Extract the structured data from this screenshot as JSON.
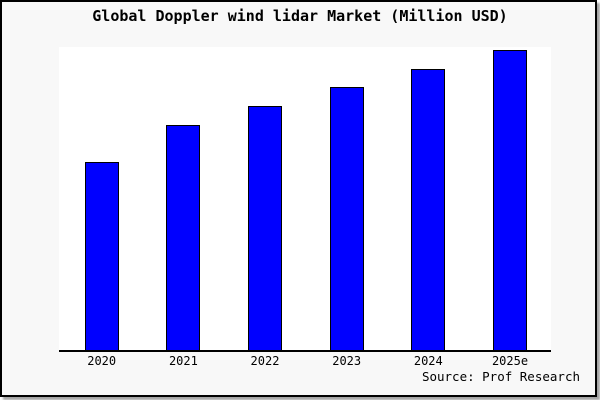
{
  "title": "Global Doppler wind lidar Market (Million USD)",
  "source": "Source: Prof Research",
  "colors": {
    "bar_fill": "#0000ff",
    "bar_border": "#000000",
    "figure_bg": "#f8f8f8",
    "plot_bg": "#ffffff",
    "axis": "#000000",
    "frame_border": "#000000"
  },
  "chart_data": {
    "type": "bar",
    "title": "Global Doppler wind lidar Market (Million USD)",
    "categories": [
      "2020",
      "2021",
      "2022",
      "2023",
      "2024",
      "2025e"
    ],
    "values": [
      62.7,
      75.0,
      81.3,
      87.7,
      93.7,
      100.0
    ],
    "values_unit": "relative bar height, percent of 2025e bar (chart shows no y-axis scale or data labels)",
    "xlabel": "",
    "ylabel": "",
    "y_axis_ticks": [],
    "ylim_pct": [
      0,
      101
    ],
    "grid": false,
    "legend": false,
    "bar_color": "#0000ff",
    "source": "Source: Prof Research"
  }
}
